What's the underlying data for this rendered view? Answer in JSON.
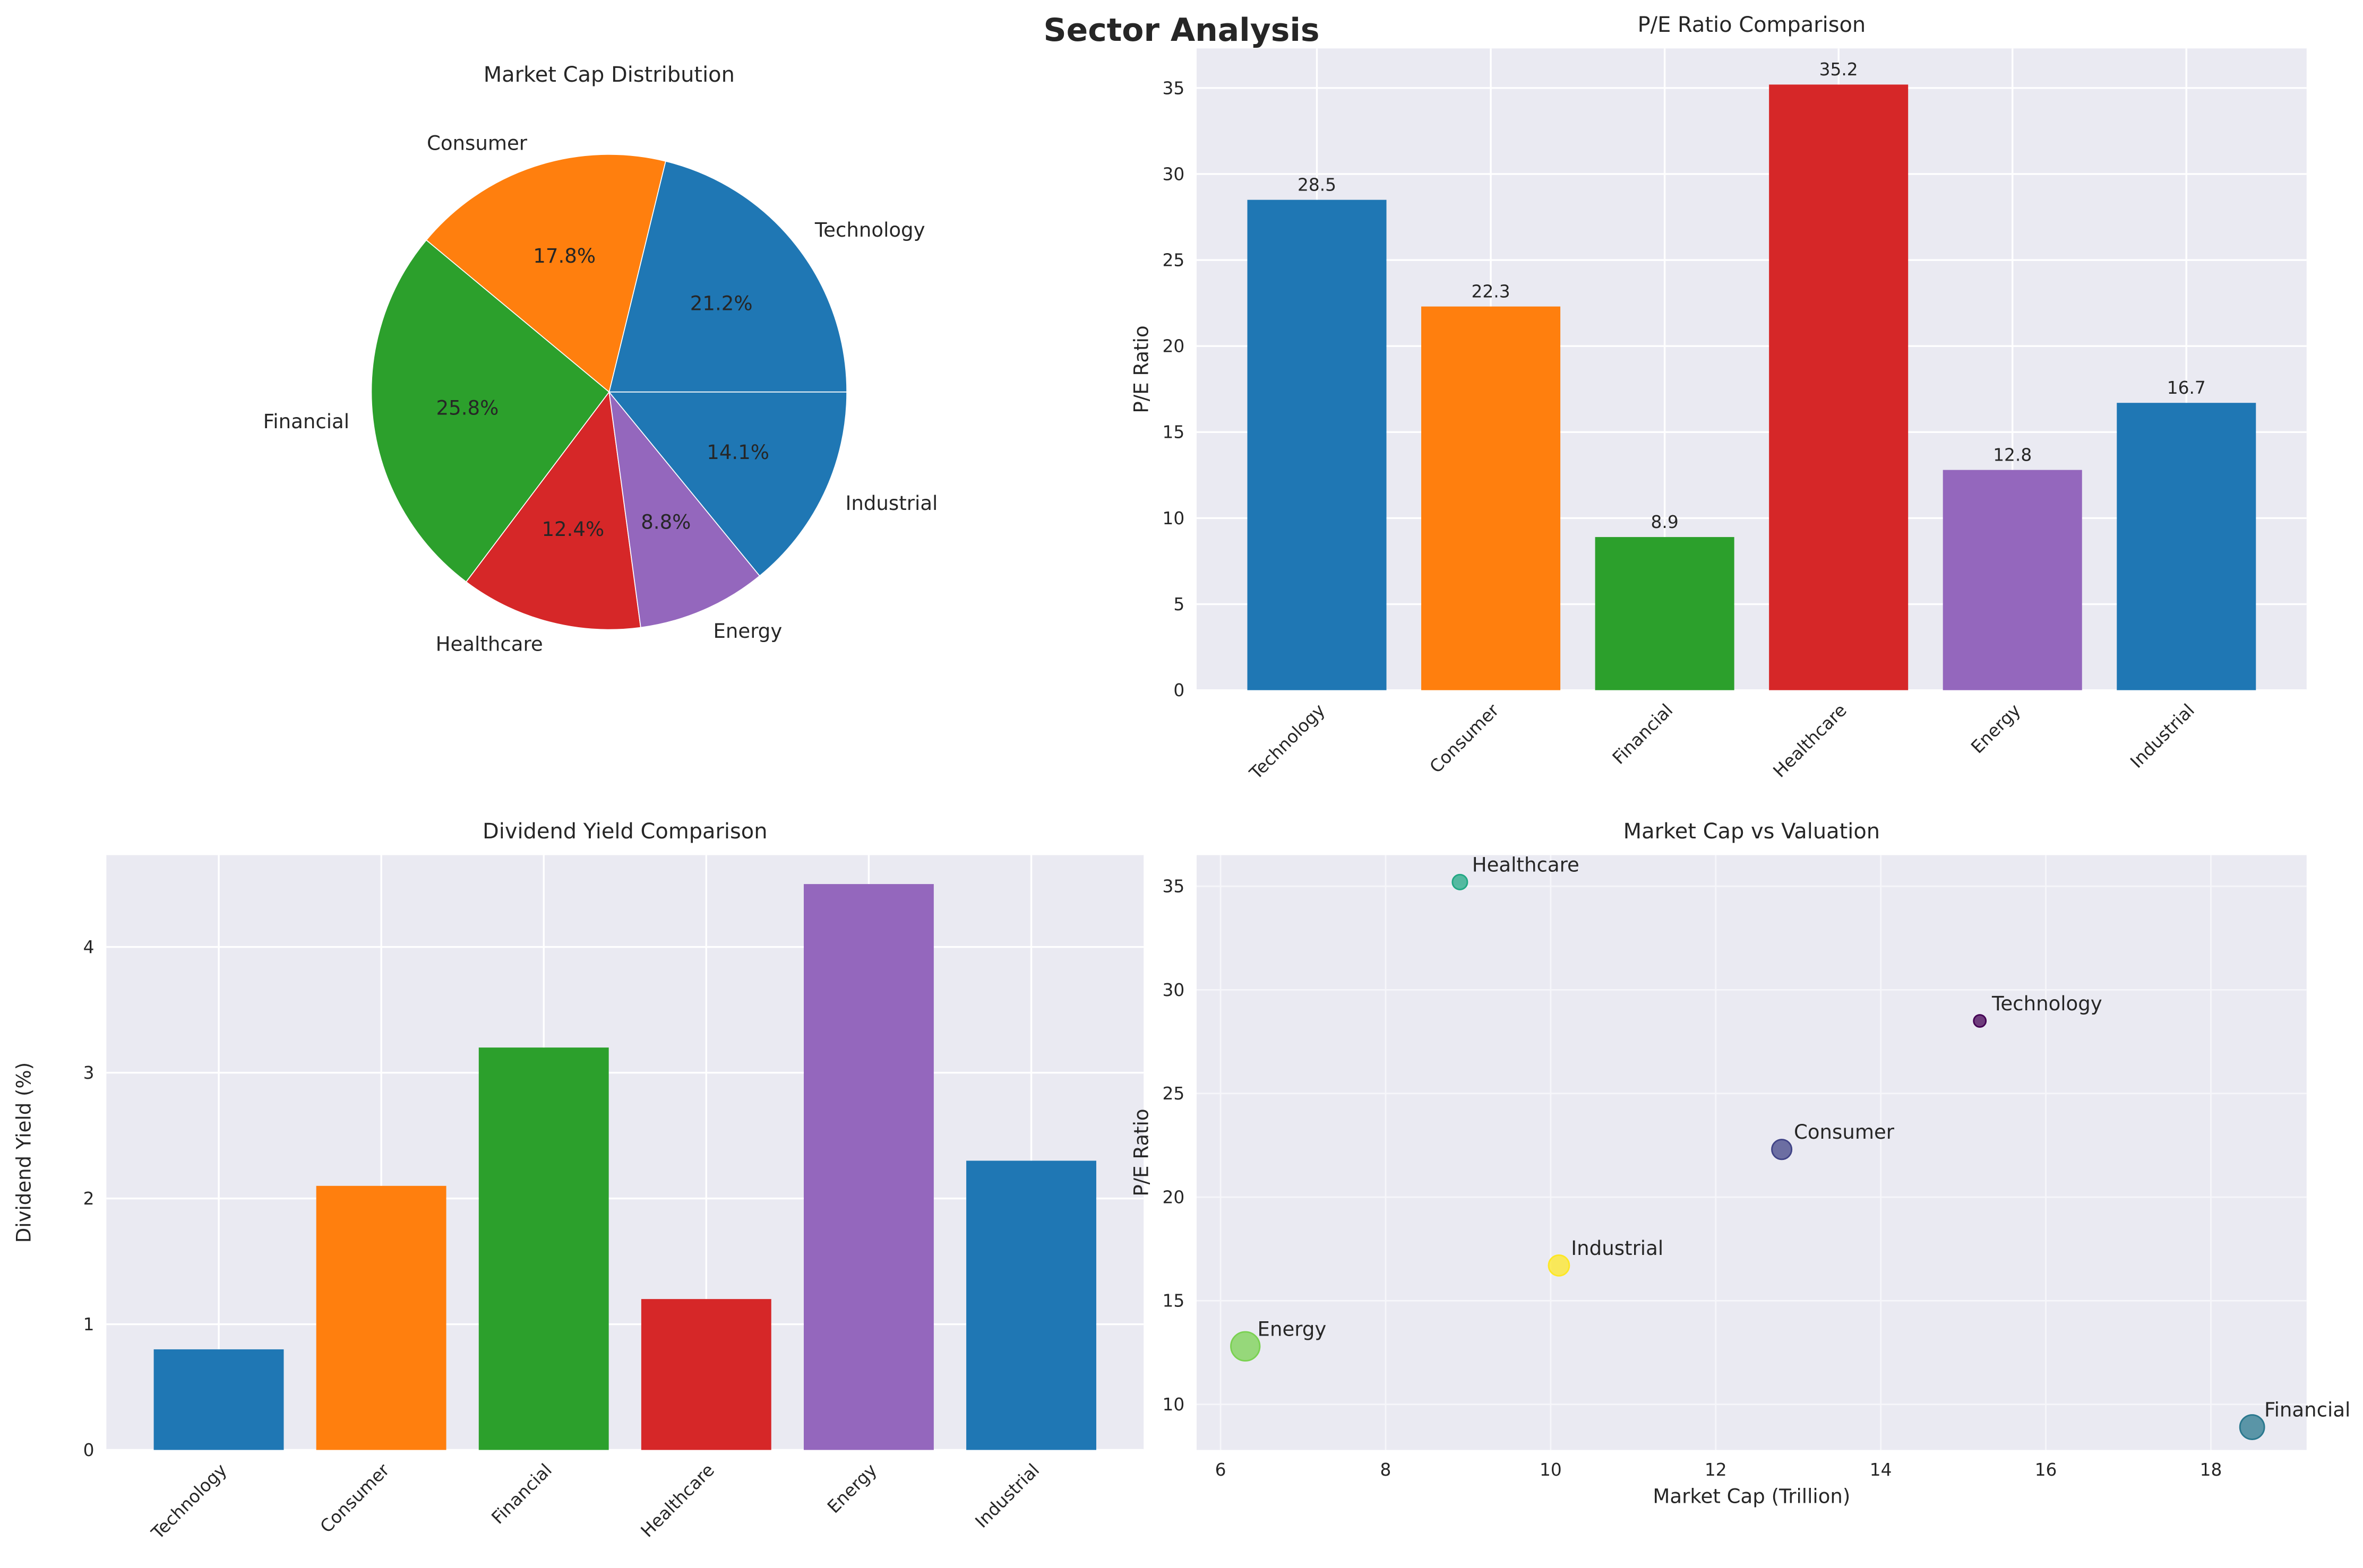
{
  "title": "Sector Analysis",
  "chart_data": [
    {
      "type": "pie",
      "title": "Market Cap Distribution",
      "labels": [
        "Technology",
        "Consumer",
        "Financial",
        "Healthcare",
        "Energy",
        "Industrial"
      ],
      "values": [
        21.2,
        17.8,
        25.8,
        12.4,
        8.8,
        14.1
      ],
      "pct_labels": [
        "21.2%",
        "17.8%",
        "25.8%",
        "12.4%",
        "8.8%",
        "14.1%"
      ],
      "colors": [
        "#1f77b4",
        "#ff7f0e",
        "#2ca02c",
        "#d62728",
        "#9467bd",
        "#1f77b4"
      ]
    },
    {
      "type": "bar",
      "title": "P/E Ratio Comparison",
      "xlabel": "",
      "ylabel": "P/E Ratio",
      "categories": [
        "Technology",
        "Consumer",
        "Financial",
        "Healthcare",
        "Energy",
        "Industrial"
      ],
      "values": [
        28.5,
        22.3,
        8.9,
        35.2,
        12.8,
        16.7
      ],
      "data_labels": [
        "28.5",
        "22.3",
        "8.9",
        "35.2",
        "12.8",
        "16.7"
      ],
      "ylim": [
        0,
        37.3
      ],
      "yticks": [
        0,
        5,
        10,
        15,
        20,
        25,
        30,
        35
      ],
      "grid": true,
      "colors": [
        "#1f77b4",
        "#ff7f0e",
        "#2ca02c",
        "#d62728",
        "#9467bd",
        "#1f77b4"
      ]
    },
    {
      "type": "bar",
      "title": "Dividend Yield Comparison",
      "xlabel": "",
      "ylabel": "Dividend Yield (%)",
      "categories": [
        "Technology",
        "Consumer",
        "Financial",
        "Healthcare",
        "Energy",
        "Industrial"
      ],
      "values": [
        0.8,
        2.1,
        3.2,
        1.2,
        4.5,
        2.3
      ],
      "ylim": [
        0,
        4.73
      ],
      "yticks": [
        0,
        1,
        2,
        3,
        4
      ],
      "grid": true,
      "colors": [
        "#1f77b4",
        "#ff7f0e",
        "#2ca02c",
        "#d62728",
        "#9467bd",
        "#1f77b4"
      ]
    },
    {
      "type": "scatter",
      "title": "Market Cap vs Valuation",
      "xlabel": "Market Cap (Trillion)",
      "ylabel": "P/E Ratio",
      "labels": [
        "Technology",
        "Consumer",
        "Financial",
        "Healthcare",
        "Energy",
        "Industrial"
      ],
      "x": [
        15.2,
        12.8,
        18.5,
        8.9,
        6.3,
        10.1
      ],
      "y": [
        28.5,
        22.3,
        8.9,
        35.2,
        12.8,
        16.7
      ],
      "size_values": [
        0.8,
        2.1,
        3.2,
        1.2,
        4.5,
        2.3
      ],
      "colors": [
        "#440154",
        "#414487",
        "#2a788e",
        "#22a884",
        "#7ad151",
        "#fde725"
      ],
      "xlim": [
        5.71,
        19.16
      ],
      "ylim": [
        7.8,
        36.5
      ],
      "xticks": [
        6,
        8,
        10,
        12,
        14,
        16,
        18
      ],
      "yticks": [
        10,
        15,
        20,
        25,
        30,
        35
      ],
      "grid": true
    }
  ]
}
